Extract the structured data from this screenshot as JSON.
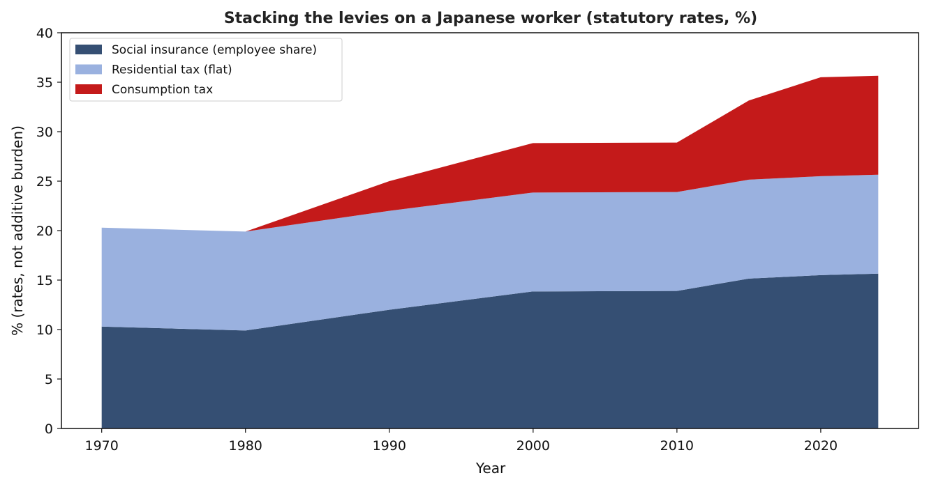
{
  "chart_data": {
    "type": "area",
    "stacked": true,
    "title": "Stacking the levies on a Japanese worker (statutory rates, %)",
    "xlabel": "Year",
    "ylabel": "% (rates, not additive burden)",
    "x": [
      1970,
      1980,
      1990,
      2000,
      2010,
      2015,
      2020,
      2024
    ],
    "xlim": [
      1967.2,
      2026.8
    ],
    "ylim": [
      0,
      40
    ],
    "xticks": [
      1970,
      1980,
      1990,
      2000,
      2010,
      2020
    ],
    "yticks": [
      0,
      5,
      10,
      15,
      20,
      25,
      30,
      35,
      40
    ],
    "grid": false,
    "legend_position": "top-left",
    "series": [
      {
        "name": "Social insurance (employee share)",
        "color": "#354f73",
        "values": [
          10.3,
          9.9,
          12.0,
          13.85,
          13.9,
          15.15,
          15.5,
          15.65
        ]
      },
      {
        "name": "Residential tax (flat)",
        "color": "#9ab1df",
        "values": [
          10.0,
          10.0,
          10.0,
          10.0,
          10.0,
          10.0,
          10.0,
          10.0
        ]
      },
      {
        "name": "Consumption tax",
        "color": "#c41a1a",
        "values": [
          0,
          0,
          3.0,
          5.0,
          5.0,
          8.0,
          10.0,
          10.0
        ]
      }
    ]
  }
}
